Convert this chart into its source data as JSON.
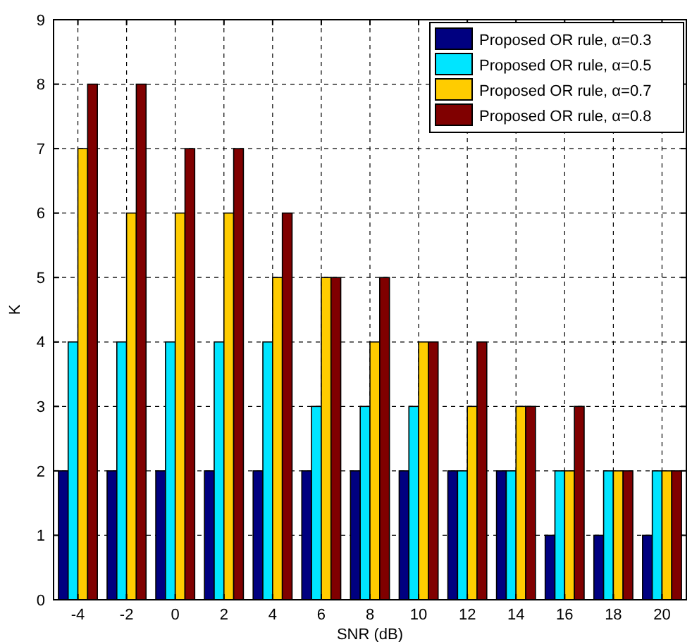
{
  "chart_data": {
    "type": "bar",
    "xlabel": "SNR (dB)",
    "ylabel": "K",
    "categories": [
      "-4",
      "-2",
      "0",
      "2",
      "4",
      "6",
      "8",
      "10",
      "12",
      "14",
      "16",
      "18",
      "20"
    ],
    "series": [
      {
        "name": "Proposed OR rule, α=0.3",
        "color": "#000080",
        "values": [
          2,
          2,
          2,
          2,
          2,
          2,
          2,
          2,
          2,
          2,
          1,
          1,
          1
        ]
      },
      {
        "name": "Proposed OR rule, α=0.5",
        "color": "#00e5ff",
        "values": [
          4,
          4,
          4,
          4,
          4,
          3,
          3,
          3,
          2,
          2,
          2,
          2,
          2
        ]
      },
      {
        "name": "Proposed OR rule, α=0.7",
        "color": "#ffcc00",
        "values": [
          7,
          6,
          6,
          6,
          5,
          5,
          4,
          4,
          3,
          3,
          2,
          2,
          2
        ]
      },
      {
        "name": "Proposed OR rule, α=0.8",
        "color": "#800000",
        "values": [
          8,
          8,
          7,
          7,
          6,
          5,
          5,
          4,
          4,
          3,
          3,
          2,
          2
        ]
      }
    ],
    "ylim": [
      0,
      9
    ],
    "yticks": [
      0,
      1,
      2,
      3,
      4,
      5,
      6,
      7,
      8,
      9
    ],
    "grid": true,
    "legend": "top right"
  }
}
